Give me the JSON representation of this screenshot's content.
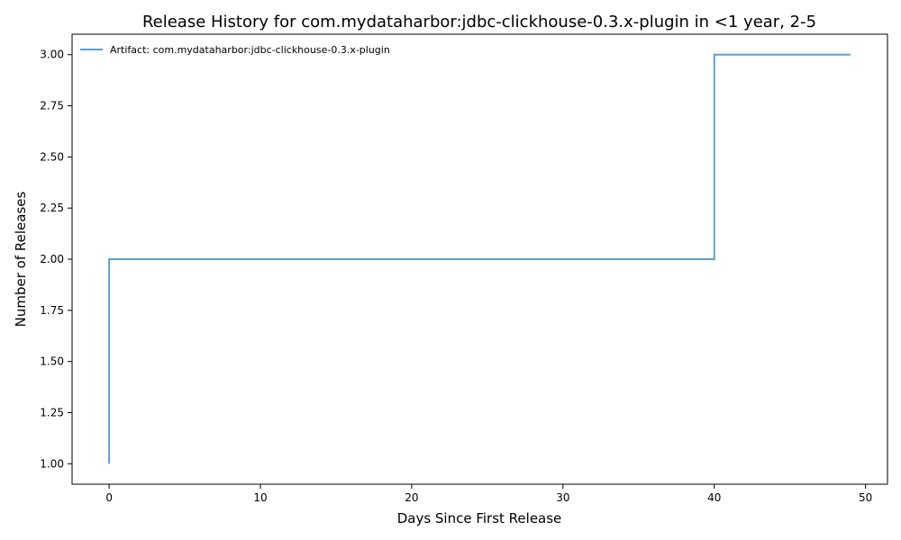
{
  "chart_data": {
    "type": "line",
    "drawstyle": "steps-post",
    "title": "Release History for com.mydataharbor:jdbc-clickhouse-0.3.x-plugin in <1 year, 2-5",
    "xlabel": "Days Since First Release",
    "ylabel": "Number of Releases",
    "xlim": [
      -2.45,
      51.45
    ],
    "ylim": [
      0.9,
      3.1
    ],
    "xticks": [
      0,
      10,
      20,
      30,
      40,
      50
    ],
    "xtick_labels": [
      "0",
      "10",
      "20",
      "30",
      "40",
      "50"
    ],
    "yticks": [
      1.0,
      1.25,
      1.5,
      1.75,
      2.0,
      2.25,
      2.5,
      2.75,
      3.0
    ],
    "ytick_labels": [
      "1.00",
      "1.25",
      "1.50",
      "1.75",
      "2.00",
      "2.25",
      "2.50",
      "2.75",
      "3.00"
    ],
    "grid": false,
    "legend_position": "top-left",
    "series": [
      {
        "name": "Artifact: com.mydataharbor:jdbc-clickhouse-0.3.x-plugin",
        "color": "#5f9fcc",
        "x": [
          0,
          0,
          40,
          49
        ],
        "y": [
          1,
          2,
          3,
          3
        ]
      }
    ]
  }
}
